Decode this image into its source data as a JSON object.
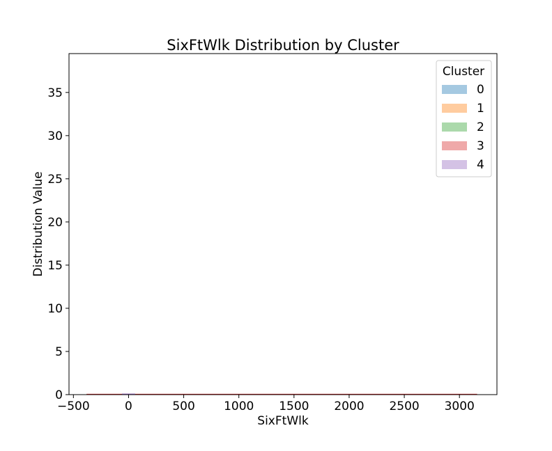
{
  "chart_data": {
    "type": "area",
    "title": "SixFtWlk Distribution by Cluster",
    "xlabel": "SixFtWlk",
    "ylabel": "Distribution Value",
    "xlim": [
      -540,
      3340
    ],
    "ylim": [
      0,
      39.5
    ],
    "xticks": [
      -500,
      0,
      500,
      1000,
      1500,
      2000,
      2500,
      3000
    ],
    "xtick_labels": [
      "−500",
      "0",
      "500",
      "1000",
      "1500",
      "2000",
      "2500",
      "3000"
    ],
    "yticks": [
      0,
      5,
      10,
      15,
      20,
      25,
      30,
      35
    ],
    "grid": false,
    "legend": {
      "title": "Cluster",
      "placement": "top-right"
    },
    "series": [
      {
        "name": "0",
        "color": "#1f77b4",
        "x": [
          -380,
          3160
        ],
        "y": [
          0.02,
          0.02
        ]
      },
      {
        "name": "1",
        "color": "#ff7f0e",
        "x": [
          -380,
          3160
        ],
        "y": [
          0.02,
          0.02
        ]
      },
      {
        "name": "2",
        "color": "#2ca02c",
        "x": [
          -380,
          3160
        ],
        "y": [
          0.02,
          0.02
        ]
      },
      {
        "name": "3",
        "color": "#d62728",
        "x": [
          -380,
          3160
        ],
        "y": [
          0.03,
          0.03
        ]
      },
      {
        "name": "4",
        "color": "#9467bd",
        "x": [
          -60,
          60
        ],
        "y": [
          0.05,
          0.05
        ]
      }
    ]
  }
}
